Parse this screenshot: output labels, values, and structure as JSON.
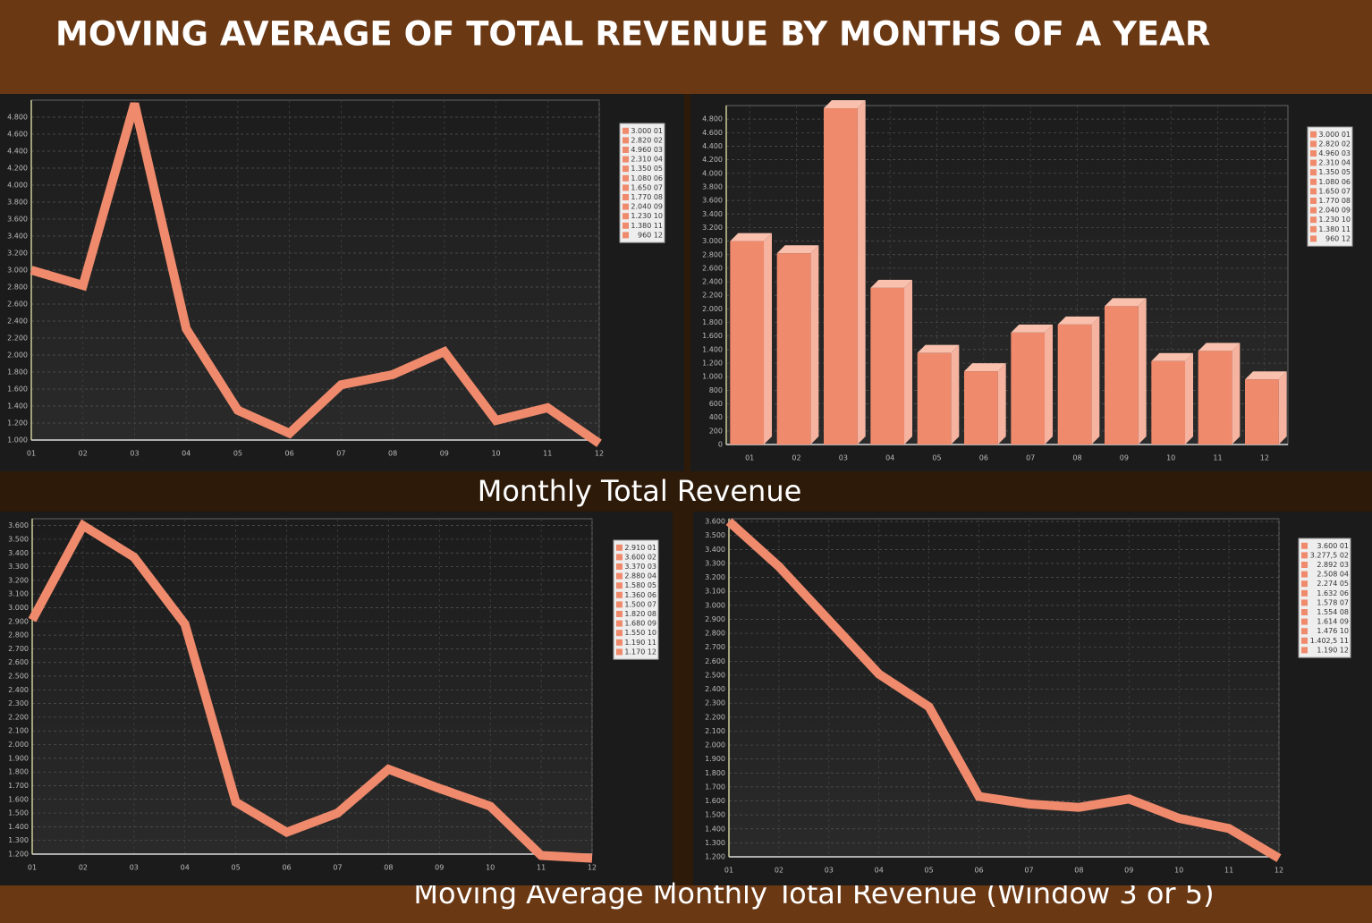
{
  "title": "MOVING AVERAGE OF TOTAL REVENUE BY MONTHS OF A YEAR",
  "captions": [
    "Monthly Total Revenue",
    "Moving Average Monthly Total Revenue (Window 3 or 5)"
  ],
  "chart_data": [
    {
      "type": "line",
      "color": "#f08a6c",
      "grid": true,
      "categories": [
        "01",
        "02",
        "03",
        "04",
        "05",
        "06",
        "07",
        "08",
        "09",
        "10",
        "11",
        "12"
      ],
      "values": [
        3000,
        2820,
        4960,
        2310,
        1350,
        1080,
        1650,
        1770,
        2040,
        1230,
        1380,
        960
      ],
      "legend_labels": [
        "3.000 01",
        "2.820 02",
        "4.960 03",
        "2.310 04",
        "1.350 05",
        "1.080 06",
        "1.650 07",
        "1.770 08",
        "2.040 09",
        "1.230 10",
        "1.380 11",
        "960 12"
      ],
      "ylim": [
        1000,
        5000
      ],
      "yticks": [
        {
          "value": 1000,
          "label": "1.000"
        },
        {
          "value": 1200,
          "label": "1.200"
        },
        {
          "value": 1400,
          "label": "1.400"
        },
        {
          "value": 1600,
          "label": "1.600"
        },
        {
          "value": 1800,
          "label": "1.800"
        },
        {
          "value": 2000,
          "label": "2.000"
        },
        {
          "value": 2200,
          "label": "2.200"
        },
        {
          "value": 2400,
          "label": "2.400"
        },
        {
          "value": 2600,
          "label": "2.600"
        },
        {
          "value": 2800,
          "label": "2.800"
        },
        {
          "value": 3000,
          "label": "3.000"
        },
        {
          "value": 3200,
          "label": "3.200"
        },
        {
          "value": 3400,
          "label": "3.400"
        },
        {
          "value": 3600,
          "label": "3.600"
        },
        {
          "value": 3800,
          "label": "3.800"
        },
        {
          "value": 4000,
          "label": "4.000"
        },
        {
          "value": 4200,
          "label": "4.200"
        },
        {
          "value": 4400,
          "label": "4.400"
        },
        {
          "value": 4600,
          "label": "4.600"
        },
        {
          "value": 4800,
          "label": "4.800"
        }
      ]
    },
    {
      "type": "bar",
      "color": "#f08a6c",
      "grid": true,
      "categories": [
        "01",
        "02",
        "03",
        "04",
        "05",
        "06",
        "07",
        "08",
        "09",
        "10",
        "11",
        "12"
      ],
      "values": [
        3000,
        2820,
        4960,
        2310,
        1350,
        1080,
        1650,
        1770,
        2040,
        1230,
        1380,
        960
      ],
      "legend_labels": [
        "3.000 01",
        "2.820 02",
        "4.960 03",
        "2.310 04",
        "1.350 05",
        "1.080 06",
        "1.650 07",
        "1.770 08",
        "2.040 09",
        "1.230 10",
        "1.380 11",
        "960 12"
      ],
      "ylim": [
        0,
        5000
      ],
      "yticks": [
        0,
        200,
        400,
        600,
        800,
        {
          "value": 1000,
          "label": "1.000"
        },
        {
          "value": 1200,
          "label": "1.200"
        },
        {
          "value": 1400,
          "label": "1.400"
        },
        {
          "value": 1600,
          "label": "1.600"
        },
        {
          "value": 1800,
          "label": "1.800"
        },
        {
          "value": 2000,
          "label": "2.000"
        },
        {
          "value": 2200,
          "label": "2.200"
        },
        {
          "value": 2400,
          "label": "2.400"
        },
        {
          "value": 2600,
          "label": "2.600"
        },
        {
          "value": 2800,
          "label": "2.800"
        },
        {
          "value": 3000,
          "label": "3.000"
        },
        {
          "value": 3200,
          "label": "3.200"
        },
        {
          "value": 3400,
          "label": "3.400"
        },
        {
          "value": 3600,
          "label": "3.600"
        },
        {
          "value": 3800,
          "label": "3.800"
        },
        {
          "value": 4000,
          "label": "4.000"
        },
        {
          "value": 4200,
          "label": "4.200"
        },
        {
          "value": 4400,
          "label": "4.400"
        },
        {
          "value": 4600,
          "label": "4.600"
        },
        {
          "value": 4800,
          "label": "4.800"
        }
      ]
    },
    {
      "type": "line",
      "color": "#f08a6c",
      "grid": true,
      "categories": [
        "01",
        "02",
        "03",
        "04",
        "05",
        "06",
        "07",
        "08",
        "09",
        "10",
        "11",
        "12"
      ],
      "values": [
        2910,
        3600,
        3370,
        2880,
        1580,
        1360,
        1500,
        1820,
        1680,
        1550,
        1190,
        1170
      ],
      "legend_labels": [
        "2.910 01",
        "3.600 02",
        "3.370 03",
        "2.880 04",
        "1.580 05",
        "1.360 06",
        "1.500 07",
        "1.820 08",
        "1.680 09",
        "1.550 10",
        "1.190 11",
        "1.170 12"
      ],
      "ylim": [
        1200,
        3650
      ],
      "yticks": [
        {
          "value": 1200,
          "label": "1.200"
        },
        {
          "value": 1300,
          "label": "1.300"
        },
        {
          "value": 1400,
          "label": "1.400"
        },
        {
          "value": 1500,
          "label": "1.500"
        },
        {
          "value": 1600,
          "label": "1.600"
        },
        {
          "value": 1700,
          "label": "1.700"
        },
        {
          "value": 1800,
          "label": "1.800"
        },
        {
          "value": 1900,
          "label": "1.900"
        },
        {
          "value": 2000,
          "label": "2.000"
        },
        {
          "value": 2100,
          "label": "2.100"
        },
        {
          "value": 2200,
          "label": "2.200"
        },
        {
          "value": 2300,
          "label": "2.300"
        },
        {
          "value": 2400,
          "label": "2.400"
        },
        {
          "value": 2500,
          "label": "2.500"
        },
        {
          "value": 2600,
          "label": "2.600"
        },
        {
          "value": 2700,
          "label": "2.700"
        },
        {
          "value": 2800,
          "label": "2.800"
        },
        {
          "value": 2900,
          "label": "2.900"
        },
        {
          "value": 3000,
          "label": "3.000"
        },
        {
          "value": 3100,
          "label": "3.100"
        },
        {
          "value": 3200,
          "label": "3.200"
        },
        {
          "value": 3300,
          "label": "3.300"
        },
        {
          "value": 3400,
          "label": "3.400"
        },
        {
          "value": 3500,
          "label": "3.500"
        },
        {
          "value": 3600,
          "label": "3.600"
        }
      ]
    },
    {
      "type": "line",
      "color": "#f08a6c",
      "grid": true,
      "categories": [
        "01",
        "02",
        "03",
        "04",
        "05",
        "06",
        "07",
        "08",
        "09",
        "10",
        "11",
        "12"
      ],
      "values": [
        3600,
        3277.5,
        2892,
        2508,
        2274,
        1632,
        1578,
        1554,
        1614,
        1476,
        1402.5,
        1190
      ],
      "legend_labels": [
        "3.600 01",
        "3.277,5 02",
        "2.892 03",
        "2.508 04",
        "2.274 05",
        "1.632 06",
        "1.578 07",
        "1.554 08",
        "1.614 09",
        "1.476 10",
        "1.402,5 11",
        "1.190 12"
      ],
      "ylim": [
        1200,
        3620
      ],
      "yticks": [
        {
          "value": 1200,
          "label": "1.200"
        },
        {
          "value": 1300,
          "label": "1.300"
        },
        {
          "value": 1400,
          "label": "1.400"
        },
        {
          "value": 1500,
          "label": "1.500"
        },
        {
          "value": 1600,
          "label": "1.600"
        },
        {
          "value": 1700,
          "label": "1.700"
        },
        {
          "value": 1800,
          "label": "1.800"
        },
        {
          "value": 1900,
          "label": "1.900"
        },
        {
          "value": 2000,
          "label": "2.000"
        },
        {
          "value": 2100,
          "label": "2.100"
        },
        {
          "value": 2200,
          "label": "2.200"
        },
        {
          "value": 2300,
          "label": "2.300"
        },
        {
          "value": 2400,
          "label": "2.400"
        },
        {
          "value": 2500,
          "label": "2.500"
        },
        {
          "value": 2600,
          "label": "2.600"
        },
        {
          "value": 2700,
          "label": "2.700"
        },
        {
          "value": 2800,
          "label": "2.800"
        },
        {
          "value": 2900,
          "label": "2.900"
        },
        {
          "value": 3000,
          "label": "3.000"
        },
        {
          "value": 3100,
          "label": "3.100"
        },
        {
          "value": 3200,
          "label": "3.200"
        },
        {
          "value": 3300,
          "label": "3.300"
        },
        {
          "value": 3400,
          "label": "3.400"
        },
        {
          "value": 3500,
          "label": "3.500"
        },
        {
          "value": 3600,
          "label": "3.600"
        }
      ]
    }
  ]
}
